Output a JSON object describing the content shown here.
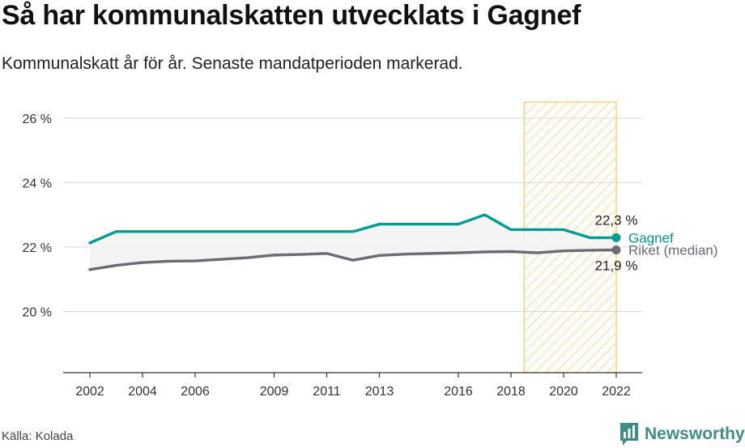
{
  "title": "Så har kommunalskatten utvecklats i Gagnef",
  "subtitle": "Kommunalskatt år för år. Senaste mandatperioden markerad.",
  "source": "Källa: Kolada",
  "brand": "Newsworthy",
  "colors": {
    "gagnef": "#009b94",
    "riket": "#6b6b73",
    "highlight": "#f7c85c",
    "grid": "#d9d9d9",
    "fill": "#f3f3f3"
  },
  "chart_data": {
    "type": "line",
    "title": "Så har kommunalskatten utvecklats i Gagnef",
    "xlabel": "",
    "ylabel": "",
    "xlim": [
      2002,
      2022
    ],
    "ylim": [
      18.1,
      26.5
    ],
    "x_ticks": [
      2002,
      2004,
      2006,
      2009,
      2011,
      2013,
      2016,
      2018,
      2020,
      2022
    ],
    "y_ticks": [
      20,
      22,
      24,
      26
    ],
    "y_tick_labels": [
      "20 %",
      "22 %",
      "24 %",
      "26 %"
    ],
    "highlight_period": [
      2018.5,
      2022
    ],
    "x": [
      2002,
      2003,
      2004,
      2005,
      2006,
      2007,
      2008,
      2009,
      2010,
      2011,
      2012,
      2013,
      2014,
      2015,
      2016,
      2017,
      2018,
      2019,
      2020,
      2021,
      2022
    ],
    "series": [
      {
        "name": "Gagnef",
        "values": [
          22.13,
          22.48,
          22.48,
          22.48,
          22.48,
          22.48,
          22.48,
          22.48,
          22.48,
          22.48,
          22.48,
          22.71,
          22.71,
          22.71,
          22.71,
          23.0,
          22.54,
          22.54,
          22.54,
          22.29,
          22.29
        ],
        "end_label": "22,3 %"
      },
      {
        "name": "Riket (median)",
        "values": [
          21.3,
          21.43,
          21.52,
          21.56,
          21.57,
          21.62,
          21.67,
          21.75,
          21.77,
          21.8,
          21.59,
          21.74,
          21.78,
          21.8,
          21.82,
          21.85,
          21.86,
          21.82,
          21.88,
          21.9,
          21.91
        ],
        "end_label": "21,9 %"
      }
    ]
  }
}
